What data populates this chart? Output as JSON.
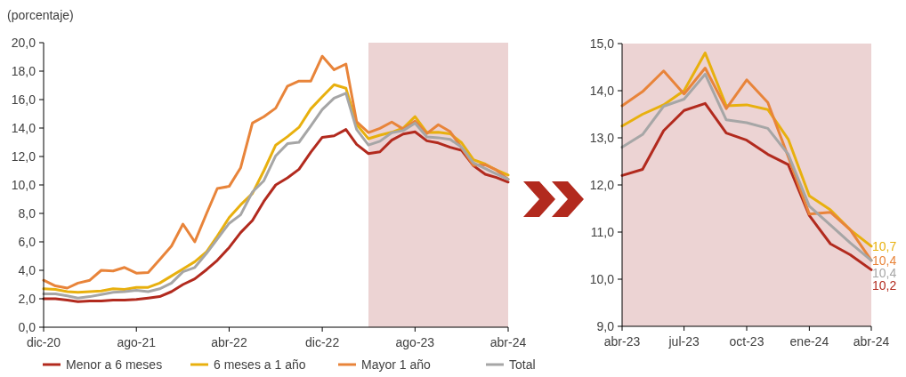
{
  "chart_data": [
    {
      "type": "line",
      "ylabel": "(porcentaje)",
      "x": [
        "2020-12",
        "2021-01",
        "2021-02",
        "2021-03",
        "2021-04",
        "2021-05",
        "2021-06",
        "2021-07",
        "2021-08",
        "2021-09",
        "2021-10",
        "2021-11",
        "2021-12",
        "2022-01",
        "2022-02",
        "2022-03",
        "2022-04",
        "2022-05",
        "2022-06",
        "2022-07",
        "2022-08",
        "2022-09",
        "2022-10",
        "2022-11",
        "2022-12",
        "2023-01",
        "2023-02",
        "2023-03",
        "2023-04",
        "2023-05",
        "2023-06",
        "2023-07",
        "2023-08",
        "2023-09",
        "2023-10",
        "2023-11",
        "2023-12",
        "2024-01",
        "2024-02",
        "2024-03",
        "2024-04"
      ],
      "series": [
        {
          "name": "Menor a 6 meses",
          "color": "#b22a1e",
          "values": [
            2.0,
            2.0,
            1.9,
            1.8,
            1.85,
            1.85,
            1.9,
            1.9,
            1.95,
            2.05,
            2.15,
            2.5,
            3.0,
            3.4,
            4.05,
            4.7,
            5.6,
            6.65,
            7.5,
            8.85,
            10.0,
            10.5,
            11.1,
            12.3,
            13.35,
            13.45,
            13.9,
            12.85,
            12.2,
            12.33,
            13.15,
            13.58,
            13.73,
            13.1,
            12.95,
            12.65,
            12.43,
            11.35,
            10.75,
            10.52,
            10.2
          ]
        },
        {
          "name": "6 meses a 1 año",
          "color": "#e8b00e",
          "values": [
            2.7,
            2.65,
            2.5,
            2.45,
            2.5,
            2.55,
            2.7,
            2.65,
            2.8,
            2.8,
            3.1,
            3.6,
            4.1,
            4.6,
            5.3,
            6.4,
            7.7,
            8.6,
            9.4,
            11.0,
            12.8,
            13.4,
            14.05,
            15.35,
            16.2,
            17.05,
            16.8,
            14.25,
            13.25,
            13.5,
            13.7,
            14.0,
            14.8,
            13.68,
            13.7,
            13.6,
            12.97,
            11.77,
            11.47,
            11.05,
            10.7
          ]
        },
        {
          "name": "Mayor 1 año",
          "color": "#e8843a",
          "values": [
            3.3,
            2.9,
            2.75,
            3.1,
            3.3,
            4.0,
            3.95,
            4.2,
            3.8,
            3.85,
            4.75,
            5.7,
            7.25,
            6.0,
            8.0,
            9.75,
            9.9,
            11.2,
            14.35,
            14.8,
            15.4,
            16.95,
            17.3,
            17.3,
            19.05,
            18.1,
            18.5,
            14.45,
            13.68,
            13.98,
            14.42,
            13.93,
            14.48,
            13.62,
            14.23,
            13.75,
            12.6,
            11.38,
            11.42,
            11.05,
            10.4
          ]
        },
        {
          "name": "Total",
          "color": "#a6a6a6",
          "values": [
            2.35,
            2.35,
            2.2,
            2.05,
            2.15,
            2.3,
            2.45,
            2.5,
            2.6,
            2.5,
            2.7,
            3.1,
            3.9,
            4.2,
            5.2,
            6.2,
            7.3,
            7.9,
            9.5,
            10.3,
            12.05,
            12.9,
            13.0,
            14.15,
            15.3,
            16.1,
            16.45,
            13.9,
            12.8,
            13.07,
            13.67,
            13.82,
            14.35,
            13.38,
            13.32,
            13.2,
            12.65,
            11.55,
            11.15,
            10.77,
            10.4
          ]
        }
      ],
      "xlim": [
        "2020-12",
        "2024-04"
      ],
      "xticks": [
        {
          "value": "2020-12",
          "label": "dic-20"
        },
        {
          "value": "2021-08",
          "label": "ago-21"
        },
        {
          "value": "2022-04",
          "label": "abr-22"
        },
        {
          "value": "2022-12",
          "label": "dic-22"
        },
        {
          "value": "2023-08",
          "label": "ago-23"
        },
        {
          "value": "2024-04",
          "label": "abr-24"
        }
      ],
      "ylim": [
        0,
        20
      ],
      "yticks": [
        {
          "value": 0,
          "label": "0,0"
        },
        {
          "value": 2,
          "label": "2,0"
        },
        {
          "value": 4,
          "label": "4,0"
        },
        {
          "value": 6,
          "label": "6,0"
        },
        {
          "value": 8,
          "label": "8,0"
        },
        {
          "value": 10,
          "label": "10,0"
        },
        {
          "value": 12,
          "label": "12,0"
        },
        {
          "value": 14,
          "label": "14,0"
        },
        {
          "value": 16,
          "label": "16,0"
        },
        {
          "value": 18,
          "label": "18,0"
        },
        {
          "value": 20,
          "label": "20,0"
        }
      ],
      "bands": [
        {
          "axis": "x",
          "from": "2023-04",
          "to": "2024-04",
          "color": "#ecd3d3"
        }
      ],
      "grid": false,
      "legend": "bottom",
      "marker": "none",
      "line_style": "solid"
    },
    {
      "type": "line",
      "x": [
        "2023-04",
        "2023-05",
        "2023-06",
        "2023-07",
        "2023-08",
        "2023-09",
        "2023-10",
        "2023-11",
        "2023-12",
        "2024-01",
        "2024-02",
        "2024-03",
        "2024-04"
      ],
      "series": [
        {
          "color": "#b22a1e",
          "values": [
            12.2,
            12.33,
            13.15,
            13.58,
            13.73,
            13.1,
            12.95,
            12.65,
            12.43,
            11.35,
            10.75,
            10.52,
            10.2
          ],
          "value_labels": [
            null,
            null,
            null,
            null,
            null,
            null,
            null,
            null,
            null,
            null,
            null,
            null,
            "10,2"
          ]
        },
        {
          "color": "#e8b00e",
          "values": [
            13.25,
            13.5,
            13.7,
            14.0,
            14.8,
            13.68,
            13.7,
            13.6,
            12.97,
            11.77,
            11.47,
            11.05,
            10.7
          ],
          "value_labels": [
            null,
            null,
            null,
            null,
            null,
            null,
            null,
            null,
            null,
            null,
            null,
            null,
            "10,7"
          ]
        },
        {
          "color": "#e8843a",
          "values": [
            13.68,
            13.98,
            14.42,
            13.93,
            14.48,
            13.62,
            14.23,
            13.75,
            12.6,
            11.38,
            11.42,
            11.05,
            10.4
          ],
          "value_labels": [
            null,
            null,
            null,
            null,
            null,
            null,
            null,
            null,
            null,
            null,
            null,
            null,
            "10,4"
          ]
        },
        {
          "color": "#a6a6a6",
          "values": [
            12.8,
            13.07,
            13.67,
            13.82,
            14.35,
            13.38,
            13.32,
            13.2,
            12.65,
            11.55,
            11.15,
            10.77,
            10.4
          ],
          "value_labels": [
            null,
            null,
            null,
            null,
            null,
            null,
            null,
            null,
            null,
            null,
            null,
            null,
            "10,4"
          ]
        }
      ],
      "xlim": [
        "2023-04",
        "2024-04"
      ],
      "xticks": [
        {
          "value": "2023-04",
          "label": "abr-23"
        },
        {
          "value": "2023-07",
          "label": "jul-23"
        },
        {
          "value": "2023-10",
          "label": "oct-23"
        },
        {
          "value": "2024-01",
          "label": "ene-24"
        },
        {
          "value": "2024-04",
          "label": "abr-24"
        }
      ],
      "ylim": [
        9,
        15
      ],
      "yticks": [
        {
          "value": 9,
          "label": "9,0"
        },
        {
          "value": 10,
          "label": "10,0"
        },
        {
          "value": 11,
          "label": "11,0"
        },
        {
          "value": 12,
          "label": "12,0"
        },
        {
          "value": 13,
          "label": "13,0"
        },
        {
          "value": 14,
          "label": "14,0"
        },
        {
          "value": 15,
          "label": "15,0"
        }
      ],
      "bands": [
        {
          "axis": "x",
          "from": "2023-04",
          "to": "2024-04",
          "color": "#ecd3d3"
        }
      ],
      "grid": false,
      "legend": false,
      "marker": "none",
      "line_style": "solid"
    }
  ]
}
